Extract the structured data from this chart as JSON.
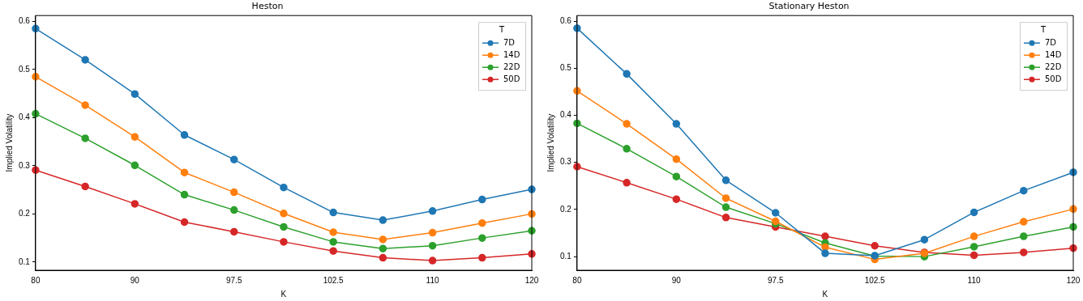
{
  "chart_data": [
    {
      "type": "line",
      "title": "Heston",
      "xlabel": "K",
      "ylabel": "Implied Volatility",
      "legend_title": "T",
      "legend": "top right",
      "grid": false,
      "marker": "circle",
      "line_style": "solid",
      "categories": [
        "80",
        null,
        "90",
        null,
        "97.5",
        null,
        "102.5",
        null,
        "110",
        null,
        "120"
      ],
      "ylim": [
        0.083,
        0.612
      ],
      "yticks": [
        0.1,
        0.2,
        0.3,
        0.4,
        0.5,
        0.6
      ],
      "series": [
        {
          "name": "7D",
          "color": "#1f77b4",
          "values": [
            0.585,
            0.52,
            0.449,
            0.364,
            0.313,
            0.255,
            0.203,
            0.187,
            0.206,
            0.23,
            0.251
          ]
        },
        {
          "name": "14D",
          "color": "#ff7f0e",
          "values": [
            0.485,
            0.426,
            0.36,
            0.286,
            0.245,
            0.201,
            0.162,
            0.147,
            0.161,
            0.181,
            0.2
          ]
        },
        {
          "name": "22D",
          "color": "#2ca02c",
          "values": [
            0.408,
            0.357,
            0.301,
            0.24,
            0.208,
            0.173,
            0.142,
            0.128,
            0.134,
            0.15,
            0.165
          ]
        },
        {
          "name": "50D",
          "color": "#d62728",
          "values": [
            0.291,
            0.257,
            0.221,
            0.183,
            0.163,
            0.142,
            0.123,
            0.109,
            0.103,
            0.109,
            0.117
          ]
        }
      ]
    },
    {
      "type": "line",
      "title": "Stationary Heston",
      "xlabel": "K",
      "ylabel": "Implied Volatility",
      "legend_title": "T",
      "legend": "top right",
      "grid": false,
      "marker": "circle",
      "line_style": "solid",
      "categories": [
        "80",
        null,
        "90",
        null,
        "97.5",
        null,
        "102.5",
        null,
        "110",
        null,
        "120"
      ],
      "ylim": [
        0.071,
        0.612
      ],
      "yticks": [
        0.1,
        0.2,
        0.3,
        0.4,
        0.5,
        0.6
      ],
      "series": [
        {
          "name": "7D",
          "color": "#1f77b4",
          "values": [
            0.585,
            0.488,
            0.382,
            0.262,
            0.193,
            0.107,
            0.102,
            0.136,
            0.194,
            0.24,
            0.279
          ]
        },
        {
          "name": "14D",
          "color": "#ff7f0e",
          "values": [
            0.452,
            0.382,
            0.307,
            0.224,
            0.175,
            0.12,
            0.094,
            0.107,
            0.143,
            0.174,
            0.201
          ]
        },
        {
          "name": "22D",
          "color": "#2ca02c",
          "values": [
            0.383,
            0.329,
            0.27,
            0.205,
            0.17,
            0.129,
            0.101,
            0.1,
            0.121,
            0.143,
            0.163
          ]
        },
        {
          "name": "50D",
          "color": "#d62728",
          "values": [
            0.291,
            0.257,
            0.222,
            0.183,
            0.163,
            0.143,
            0.123,
            0.109,
            0.103,
            0.109,
            0.118
          ]
        }
      ]
    }
  ]
}
